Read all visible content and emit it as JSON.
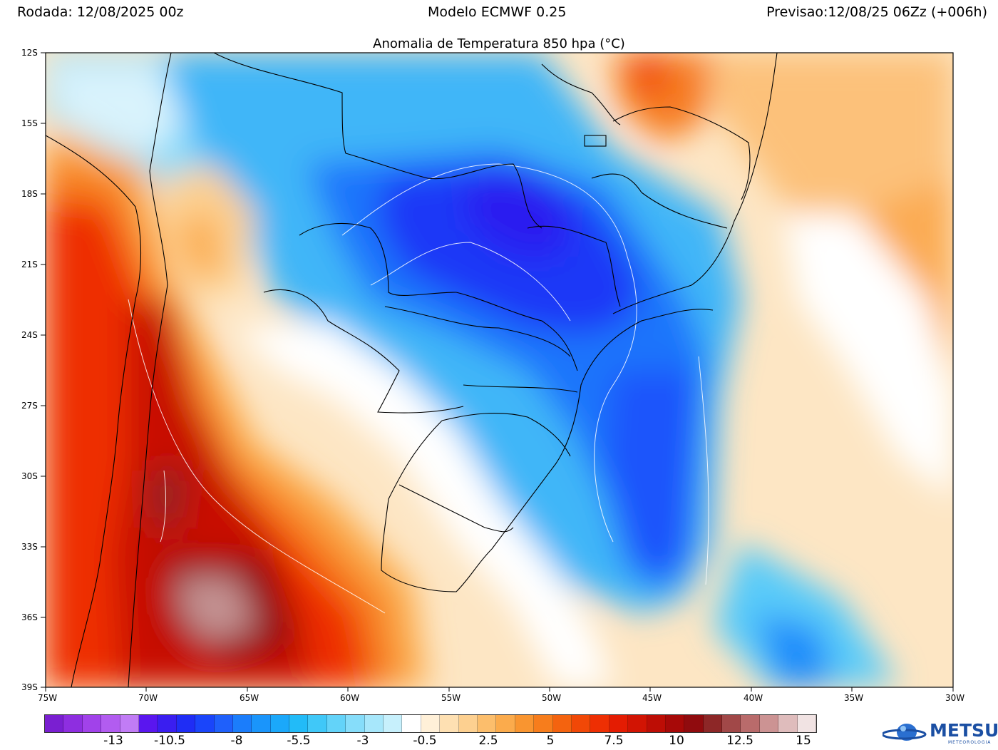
{
  "header": {
    "run": "Rodada: 12/08/2025 00z",
    "model": "Modelo ECMWF 0.25",
    "forecast": "Previsao:12/08/25 06Zz (+006h)"
  },
  "title": "Anomalia de Temperatura 850 hpa (°C)",
  "lat_labels": [
    "12S",
    "15S",
    "18S",
    "21S",
    "24S",
    "27S",
    "30S",
    "33S",
    "36S",
    "39S"
  ],
  "lon_labels": [
    "75W",
    "70W",
    "65W",
    "60W",
    "55W",
    "50W",
    "45W",
    "40W",
    "35W",
    "30W"
  ],
  "colorbar": {
    "labels": [
      "-13",
      "-10.5",
      "-8",
      "-5.5",
      "-3",
      "-0.5",
      "2.5",
      "5",
      "7.5",
      "10",
      "12.5",
      "15"
    ],
    "colors": [
      "#7a1fd1",
      "#8e2ee0",
      "#a142ea",
      "#b25cf0",
      "#c17cf5",
      "#5a16ef",
      "#3a1ef0",
      "#1f2df5",
      "#1a45fa",
      "#1f60fb",
      "#1b7dfb",
      "#1a95fb",
      "#1ba8fa",
      "#22bbf8",
      "#40c8f8",
      "#63d3f9",
      "#86ddfa",
      "#a7e7fb",
      "#c7f0fc",
      "#ffffff",
      "#fff0d8",
      "#fee0b2",
      "#fdd090",
      "#fcbe6c",
      "#fbab4c",
      "#f99530",
      "#f77d1c",
      "#f4630f",
      "#f14807",
      "#ee2f03",
      "#e41c02",
      "#d21403",
      "#bd0d05",
      "#a70908",
      "#900b0e",
      "#8d2727",
      "#a14848",
      "#b96b6b",
      "#cc9393",
      "#dfbcbc",
      "#f1e3e3"
    ]
  },
  "logo": {
    "name": "METSUL",
    "subtitle": "METEOROLOGIA"
  }
}
